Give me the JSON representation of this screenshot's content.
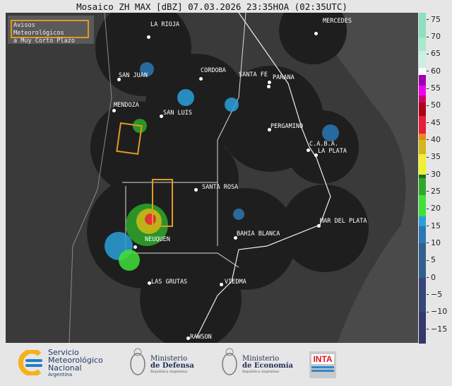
{
  "title": "Mosaico ZH MAX [dBZ] 07.03.2026 23:35HOA (02:35UTC)",
  "avisos_box": {
    "line1": "Avisos Meteorológicos",
    "line2": "a Muy Corto Plazo",
    "border_color": "#e29a1e"
  },
  "cities": [
    {
      "name": "LA RIOJA"
    },
    {
      "name": "MERCEDES"
    },
    {
      "name": "SAN JUAN"
    },
    {
      "name": "CORDOBA"
    },
    {
      "name": "SANTA FE"
    },
    {
      "name": "PARANA"
    },
    {
      "name": "MENDOZA"
    },
    {
      "name": "SAN LUIS"
    },
    {
      "name": "PERGAMINO"
    },
    {
      "name": "C.A.B.A."
    },
    {
      "name": "LA PLATA"
    },
    {
      "name": "SANTA ROSA"
    },
    {
      "name": "MAR DEL PLATA"
    },
    {
      "name": "NEUQUEN"
    },
    {
      "name": "BAHIA BLANCA"
    },
    {
      "name": "LAS GRUTAS"
    },
    {
      "name": "VIEDMA"
    },
    {
      "name": "RAWSON"
    }
  ],
  "colorbar": {
    "unit": "dBZ",
    "range": [
      -19,
      77
    ],
    "ticks": [
      "75",
      "70",
      "65",
      "60",
      "55",
      "50",
      "45",
      "40",
      "35",
      "30",
      "25",
      "20",
      "15",
      "10",
      "5",
      "0",
      "−5",
      "−10",
      "−15"
    ],
    "stops": [
      {
        "from": -19,
        "color": "#35386a"
      },
      {
        "from": -10,
        "color": "#36467a"
      },
      {
        "from": 0,
        "color": "#32608e"
      },
      {
        "from": 10,
        "color": "#2a78b4"
      },
      {
        "from": 15,
        "color": "#2aa0d8"
      },
      {
        "from": 18,
        "color": "#3ee03a"
      },
      {
        "from": 24,
        "color": "#2ea82a"
      },
      {
        "from": 29,
        "color": "#1e6e1e"
      },
      {
        "from": 30,
        "color": "#f0f030"
      },
      {
        "from": 36,
        "color": "#d4b818"
      },
      {
        "from": 40,
        "color": "#e68a1e"
      },
      {
        "from": 42,
        "color": "#e81e3a"
      },
      {
        "from": 47,
        "color": "#b0001a"
      },
      {
        "from": 51,
        "color": "#d0006a"
      },
      {
        "from": 53,
        "color": "#f000f0"
      },
      {
        "from": 56,
        "color": "#9e00b0"
      },
      {
        "from": 59,
        "color": "#ffffff"
      },
      {
        "from": 61,
        "color": "#c8f0e0"
      },
      {
        "from": 66,
        "color": "#a8e8cc"
      },
      {
        "from": 70,
        "color": "#8ee0c0"
      }
    ]
  },
  "footer": {
    "smn": {
      "line1": "Servicio",
      "line2": "Meteorológico",
      "line3": "Nacional",
      "line4": "Argentina"
    },
    "defensa": {
      "line1": "Ministerio",
      "line2": "de Defensa",
      "line3": "República Argentina"
    },
    "economia": {
      "line1": "Ministerio",
      "line2": "de Economía",
      "line3": "República Argentina"
    },
    "inta": {
      "label": "INTA"
    }
  }
}
